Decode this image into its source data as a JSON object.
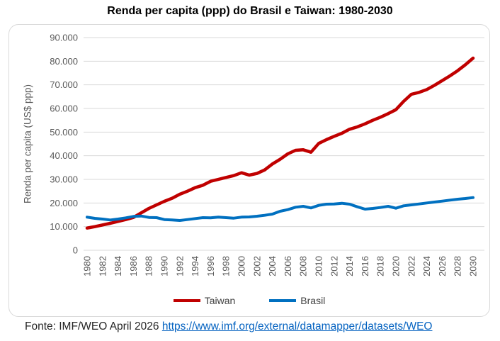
{
  "page": {
    "title": "Renda per capita (ppp) do Brasil e Taiwan: 1980-2030"
  },
  "footer": {
    "prefix": "Fonte: IMF/WEO April 2026",
    "link_text": "https://www.imf.org/external/datamapper/datasets/WEO"
  },
  "colors": {
    "grid": "#D9D9D9",
    "border": "#D9D9D9",
    "tick_text": "#595959",
    "axis_title_text": "#595959",
    "taiwan_red": "#C00000",
    "brasil_blue": "#0070C0",
    "link_blue": "#0563C1"
  },
  "chart_data": {
    "type": "line",
    "title": "Renda per capita (ppp) do Brasil e Taiwan: 1980-2030",
    "xlabel": "",
    "ylabel": "Renda per capita (US$ ppp)",
    "x_start": 1980,
    "x_end": 2030,
    "ylim": [
      0,
      90000
    ],
    "grid": true,
    "legend_position": "bottom",
    "y_tick_values": [
      0,
      10000,
      20000,
      30000,
      40000,
      50000,
      60000,
      70000,
      80000,
      90000
    ],
    "y_tick_labels": [
      "0",
      "10.000",
      "20.000",
      "30.000",
      "40.000",
      "50.000",
      "60.000",
      "70.000",
      "80.000",
      "90.000"
    ],
    "x_tick_values": [
      1980,
      1982,
      1984,
      1986,
      1988,
      1990,
      1992,
      1994,
      1996,
      1998,
      2000,
      2002,
      2004,
      2006,
      2008,
      2010,
      2012,
      2014,
      2016,
      2018,
      2020,
      2022,
      2024,
      2026,
      2028,
      2030
    ],
    "series": [
      {
        "name": "Taiwan",
        "color": "#C00000",
        "stroke_width": 4.5,
        "values": [
          9400,
          10000,
          10700,
          11400,
          12200,
          13000,
          13900,
          15800,
          17700,
          19200,
          20700,
          22000,
          23700,
          25000,
          26500,
          27500,
          29200,
          30000,
          30800,
          31600,
          32800,
          31800,
          32500,
          34000,
          36500,
          38500,
          40800,
          42300,
          42500,
          41500,
          45200,
          46800,
          48200,
          49500,
          51200,
          52200,
          53500,
          55000,
          56300,
          57800,
          59500,
          63000,
          66000,
          66800,
          68000,
          69800,
          71800,
          73800,
          76000,
          78500,
          81300
        ]
      },
      {
        "name": "Brasil",
        "color": "#0070C0",
        "stroke_width": 4,
        "values": [
          14000,
          13500,
          13200,
          12800,
          13200,
          13700,
          14300,
          14500,
          13900,
          13800,
          13000,
          12800,
          12600,
          13000,
          13400,
          13800,
          13700,
          14000,
          13800,
          13600,
          14000,
          14100,
          14400,
          14800,
          15300,
          16500,
          17200,
          18200,
          18600,
          17900,
          19000,
          19500,
          19600,
          19900,
          19500,
          18400,
          17400,
          17700,
          18100,
          18600,
          17800,
          18800,
          19200,
          19600,
          20000,
          20400,
          20800,
          21200,
          21600,
          21900,
          22300
        ]
      }
    ]
  }
}
